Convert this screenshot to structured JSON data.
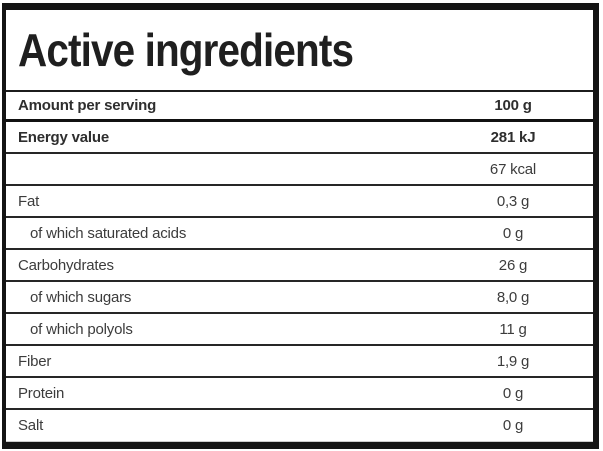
{
  "title": "Active ingredients",
  "table": {
    "header": {
      "label": "Amount per serving",
      "value": "100 g"
    },
    "rows": [
      {
        "label": "Energy value",
        "value": "281 kJ",
        "bold": true,
        "indent": false
      },
      {
        "label": "",
        "value": "67 kcal",
        "bold": false,
        "indent": false
      },
      {
        "label": "Fat",
        "value": "0,3 g",
        "bold": false,
        "indent": false
      },
      {
        "label": "of which saturated acids",
        "value": "0 g",
        "bold": false,
        "indent": true
      },
      {
        "label": "Carbohydrates",
        "value": "26 g",
        "bold": false,
        "indent": false
      },
      {
        "label": "of which sugars",
        "value": "8,0 g",
        "bold": false,
        "indent": true
      },
      {
        "label": "of which polyols",
        "value": "11 g",
        "bold": false,
        "indent": true
      },
      {
        "label": "Fiber",
        "value": "1,9 g",
        "bold": false,
        "indent": false
      },
      {
        "label": "Protein",
        "value": "0 g",
        "bold": false,
        "indent": false
      },
      {
        "label": "Salt",
        "value": "0 g",
        "bold": false,
        "indent": false
      }
    ]
  },
  "colors": {
    "border": "#141414",
    "separator": "#262626",
    "light_separator": "#cccccc",
    "title_text": "#1f1f1f",
    "row_text": "#3c3c3c"
  }
}
